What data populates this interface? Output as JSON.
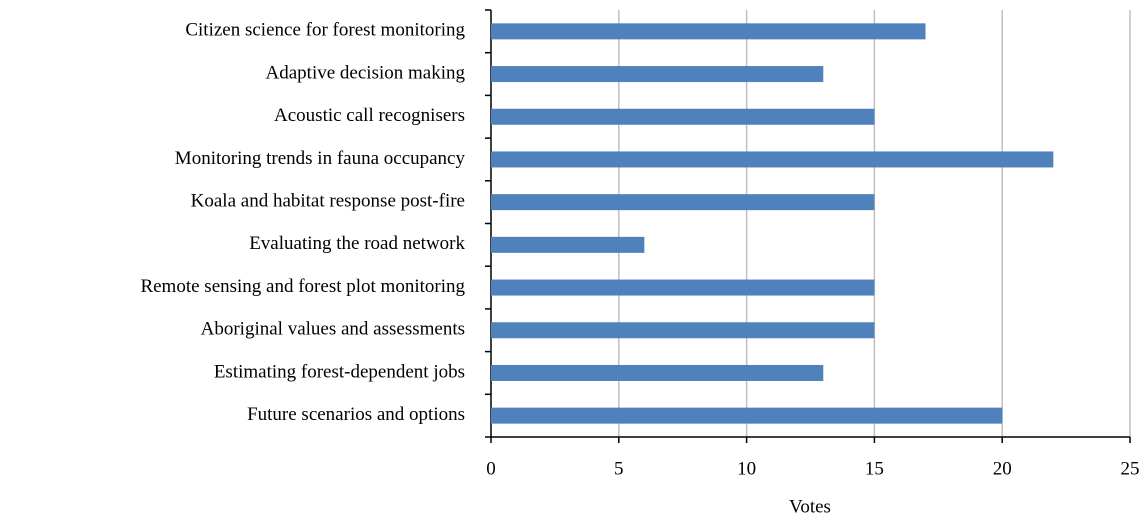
{
  "chart_data": {
    "type": "bar",
    "orientation": "horizontal",
    "categories": [
      "Citizen science for forest monitoring",
      "Adaptive decision making",
      "Acoustic call recognisers",
      "Monitoring trends in fauna occupancy",
      "Koala and habitat response post-fire",
      "Evaluating the road network",
      "Remote sensing and forest plot monitoring",
      "Aboriginal values and assessments",
      "Estimating forest-dependent jobs",
      "Future scenarios and options"
    ],
    "values": [
      17,
      13,
      15,
      22,
      15,
      6,
      15,
      15,
      13,
      20
    ],
    "color": "#4f81bd",
    "xlabel": "Votes",
    "xlim": [
      0,
      25
    ],
    "xticks": [
      0,
      5,
      10,
      15,
      20,
      25
    ],
    "grid": true
  }
}
